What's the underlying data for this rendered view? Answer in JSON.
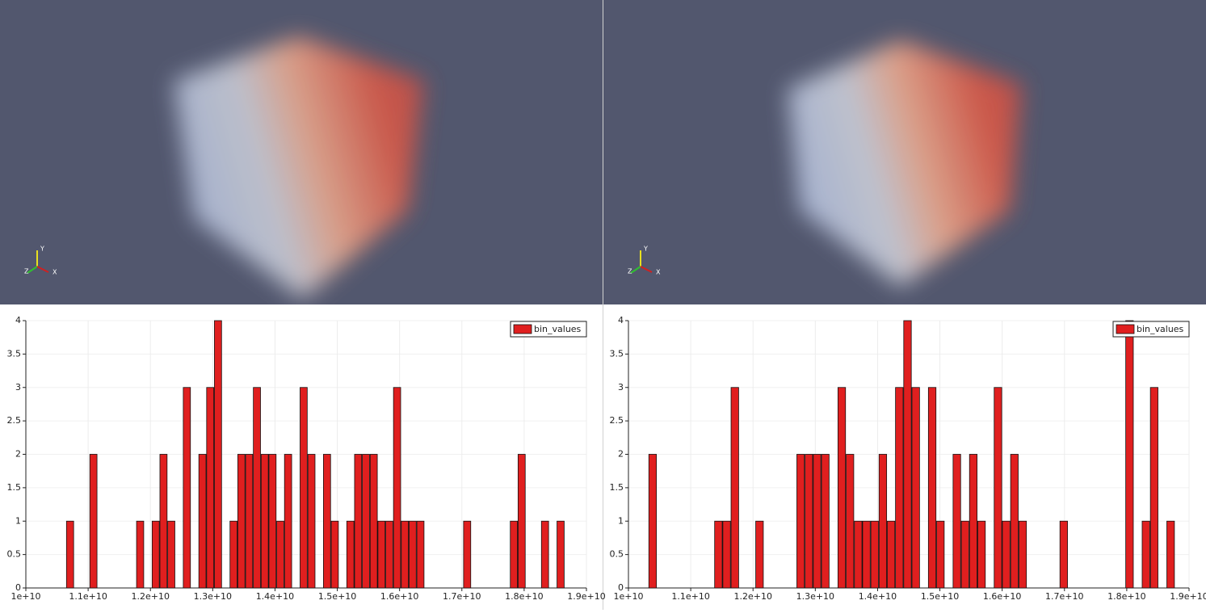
{
  "views": [
    {
      "axes_labels": [
        "Y",
        "Z",
        "X"
      ]
    },
    {
      "axes_labels": [
        "Y",
        "Z",
        "X"
      ]
    }
  ],
  "chart_data": [
    {
      "type": "histogram",
      "bins": [
        10650000000,
        10775000000,
        10900000000,
        11025000000,
        11150000000,
        11275000000,
        11400000000,
        11525000000,
        11650000000,
        11775000000,
        11900000000,
        12025000000,
        12150000000,
        12275000000,
        12400000000,
        12525000000,
        12650000000,
        12775000000,
        12900000000,
        13025000000,
        13150000000,
        13275000000,
        13400000000,
        13525000000,
        13650000000,
        13775000000,
        13900000000,
        14025000000,
        14150000000,
        14275000000,
        14400000000,
        14525000000,
        14650000000,
        14775000000,
        14900000000,
        15025000000,
        15150000000,
        15275000000,
        15400000000,
        15525000000,
        15650000000,
        15775000000,
        15900000000,
        16025000000,
        16150000000,
        16275000000,
        16400000000,
        16525000000,
        16650000000,
        16775000000,
        16900000000,
        17025000000,
        17150000000,
        17275000000,
        17400000000,
        17525000000,
        17650000000,
        17775000000,
        17900000000,
        18025000000,
        18150000000,
        18275000000,
        18400000000,
        18525000000,
        18650000000
      ],
      "series": [
        {
          "name": "bin_values",
          "color": "#e01f1f",
          "values": [
            1,
            0,
            0,
            2,
            0,
            0,
            0,
            0,
            0,
            1,
            0,
            1,
            2,
            1,
            0,
            3,
            0,
            2,
            3,
            4,
            0,
            1,
            2,
            2,
            3,
            2,
            2,
            1,
            2,
            0,
            3,
            2,
            0,
            2,
            1,
            0,
            1,
            2,
            2,
            2,
            1,
            1,
            3,
            1,
            1,
            1,
            0,
            0,
            0,
            0,
            0,
            1,
            0,
            0,
            0,
            0,
            0,
            1,
            2,
            0,
            0,
            1,
            0,
            1
          ]
        }
      ],
      "xlim": [
        10000000000,
        19000000000
      ],
      "xticks": [
        {
          "value": 10000000000,
          "label": "1e+10"
        },
        {
          "value": 11000000000,
          "label": "1.1e+10"
        },
        {
          "value": 12000000000,
          "label": "1.2e+10"
        },
        {
          "value": 13000000000,
          "label": "1.3e+10"
        },
        {
          "value": 14000000000,
          "label": "1.4e+10"
        },
        {
          "value": 15000000000,
          "label": "1.5e+10"
        },
        {
          "value": 16000000000,
          "label": "1.6e+10"
        },
        {
          "value": 17000000000,
          "label": "1.7e+10"
        },
        {
          "value": 18000000000,
          "label": "1.8e+10"
        },
        {
          "value": 19000000000,
          "label": "1.9e+10"
        }
      ],
      "ylim": [
        0,
        4
      ],
      "yticks": [
        0,
        0.5,
        1,
        1.5,
        2,
        2.5,
        3,
        3.5,
        4
      ],
      "grid": true,
      "legend": "top-right"
    },
    {
      "type": "histogram",
      "bins": [
        10325000000,
        10457000000,
        10589000000,
        10721000000,
        10853000000,
        10985000000,
        11117000000,
        11249000000,
        11381000000,
        11513000000,
        11645000000,
        11777000000,
        11909000000,
        12041000000,
        12173000000,
        12305000000,
        12437000000,
        12569000000,
        12701000000,
        12833000000,
        12965000000,
        13097000000,
        13229000000,
        13361000000,
        13493000000,
        13625000000,
        13757000000,
        13889000000,
        14021000000,
        14153000000,
        14285000000,
        14417000000,
        14549000000,
        14681000000,
        14813000000,
        14945000000,
        15077000000,
        15209000000,
        15341000000,
        15473000000,
        15605000000,
        15737000000,
        15869000000,
        16001000000,
        16133000000,
        16265000000,
        16397000000,
        16529000000,
        16661000000,
        16793000000,
        16925000000,
        17057000000,
        17189000000,
        17321000000,
        17453000000,
        17585000000,
        17717000000,
        17849000000,
        17981000000,
        18113000000,
        18245000000,
        18377000000,
        18509000000,
        18641000000,
        18773000000
      ],
      "series": [
        {
          "name": "bin_values",
          "color": "#e01f1f",
          "values": [
            2,
            0,
            0,
            0,
            0,
            0,
            0,
            0,
            1,
            1,
            3,
            0,
            0,
            1,
            0,
            0,
            0,
            0,
            2,
            2,
            2,
            2,
            0,
            3,
            2,
            1,
            1,
            1,
            2,
            1,
            3,
            4,
            3,
            0,
            3,
            1,
            0,
            2,
            1,
            2,
            1,
            0,
            3,
            1,
            2,
            1,
            0,
            0,
            0,
            0,
            1,
            0,
            0,
            0,
            0,
            0,
            0,
            0,
            4,
            0,
            1,
            3,
            0,
            1
          ]
        }
      ],
      "xlim": [
        10000000000,
        19000000000
      ],
      "xticks": [
        {
          "value": 10000000000,
          "label": "1e+10"
        },
        {
          "value": 11000000000,
          "label": "1.1e+10"
        },
        {
          "value": 12000000000,
          "label": "1.2e+10"
        },
        {
          "value": 13000000000,
          "label": "1.3e+10"
        },
        {
          "value": 14000000000,
          "label": "1.4e+10"
        },
        {
          "value": 15000000000,
          "label": "1.5e+10"
        },
        {
          "value": 16000000000,
          "label": "1.6e+10"
        },
        {
          "value": 17000000000,
          "label": "1.7e+10"
        },
        {
          "value": 18000000000,
          "label": "1.8e+10"
        },
        {
          "value": 19000000000,
          "label": "1.9e+10"
        }
      ],
      "ylim": [
        0,
        4
      ],
      "yticks": [
        0,
        0.5,
        1,
        1.5,
        2,
        2.5,
        3,
        3.5,
        4
      ],
      "grid": true,
      "legend": "top-right"
    }
  ]
}
